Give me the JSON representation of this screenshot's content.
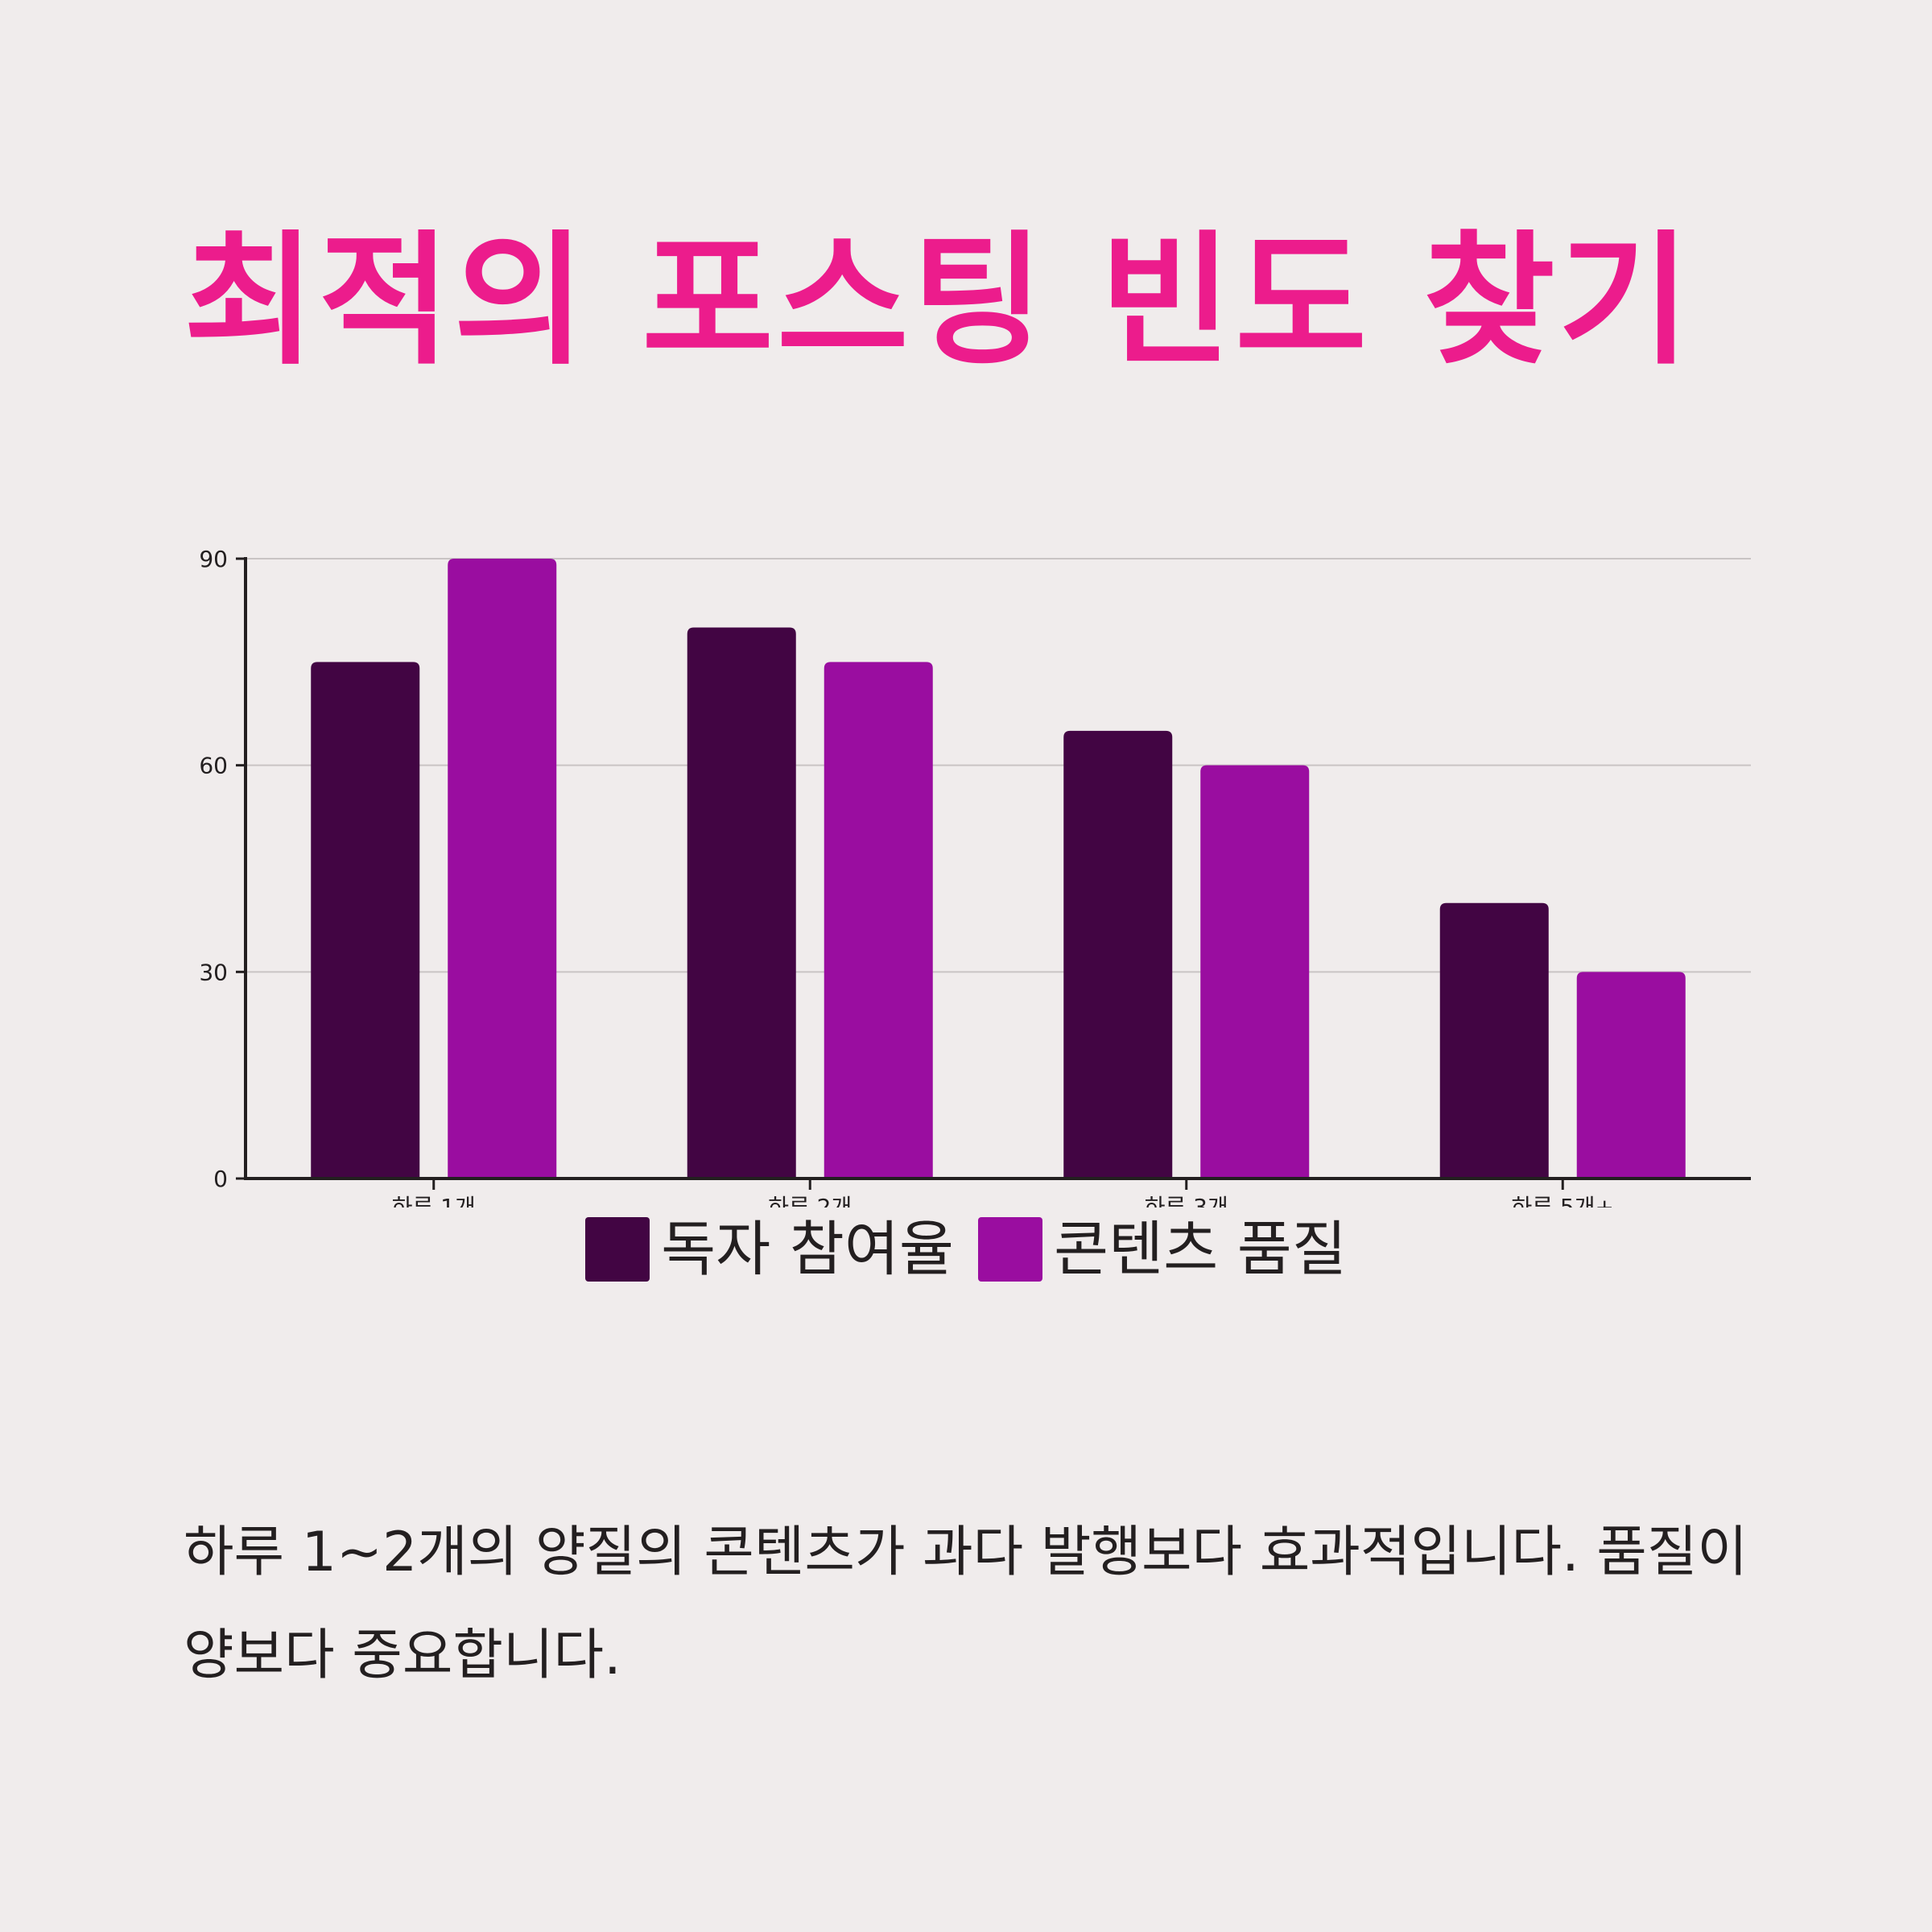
{
  "title": "최적의 포스팅 빈도 찾기",
  "caption": "하루 1~2개의 양질의 콘텐츠가 과다 발행보다 효과적입니다. 품질이 양보다 중요합니다.",
  "colors": {
    "background": "#f0ecec",
    "title": "#ec1c8c",
    "series1": "#420543",
    "series2": "#9a0da0",
    "text": "#231f20",
    "grid": "#c9c4c4",
    "axis": "#231f20"
  },
  "chart_data": {
    "type": "bar",
    "categories": [
      "하루 1개",
      "하루 2개",
      "하루 3개",
      "하루 5개+"
    ],
    "series": [
      {
        "name": "독자 참여율",
        "values": [
          75,
          80,
          65,
          40
        ]
      },
      {
        "name": "콘텐츠 품질",
        "values": [
          90,
          75,
          60,
          30
        ]
      }
    ],
    "yticks": [
      0,
      30,
      60,
      90
    ],
    "ylim": [
      0,
      90
    ],
    "grid": true,
    "legend_position": "bottom"
  }
}
